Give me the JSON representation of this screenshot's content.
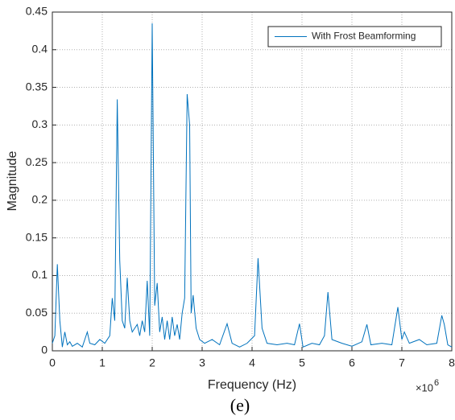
{
  "chart_data": {
    "type": "line",
    "xlabel": "Frequency (Hz)",
    "ylabel": "Magnitude",
    "caption": "(e)",
    "x_multiplier": {
      "base": "×10",
      "exponent": "6"
    },
    "xlim": [
      0,
      8
    ],
    "xticks": [
      0,
      1,
      2,
      3,
      4,
      5,
      6,
      7,
      8
    ],
    "ylim": [
      0,
      0.45
    ],
    "yticks": [
      0,
      0.05,
      0.1,
      0.15,
      0.2,
      0.25,
      0.3,
      0.35,
      0.4,
      0.45
    ],
    "grid": true,
    "legend": "upper right",
    "series": [
      {
        "name": "With Frost Beamforming",
        "color": "#0072bd",
        "x": [
          0,
          0.05,
          0.1,
          0.15,
          0.2,
          0.25,
          0.3,
          0.35,
          0.4,
          0.5,
          0.6,
          0.7,
          0.75,
          0.85,
          0.95,
          1.05,
          1.15,
          1.2,
          1.25,
          1.3,
          1.35,
          1.4,
          1.45,
          1.5,
          1.55,
          1.6,
          1.7,
          1.75,
          1.8,
          1.85,
          1.9,
          1.95,
          2.0,
          2.05,
          2.1,
          2.15,
          2.2,
          2.25,
          2.3,
          2.35,
          2.4,
          2.45,
          2.5,
          2.55,
          2.6,
          2.65,
          2.7,
          2.75,
          2.78,
          2.82,
          2.88,
          2.95,
          3.05,
          3.2,
          3.35,
          3.5,
          3.6,
          3.75,
          3.9,
          4.05,
          4.12,
          4.2,
          4.3,
          4.5,
          4.7,
          4.85,
          4.95,
          5.02,
          5.2,
          5.35,
          5.45,
          5.52,
          5.6,
          5.8,
          6.0,
          6.2,
          6.3,
          6.38,
          6.6,
          6.8,
          6.92,
          7.0,
          7.05,
          7.15,
          7.35,
          7.5,
          7.7,
          7.8,
          7.85,
          7.92,
          8.0
        ],
        "values": [
          0.01,
          0.02,
          0.115,
          0.04,
          0.005,
          0.025,
          0.008,
          0.012,
          0.006,
          0.01,
          0.005,
          0.025,
          0.01,
          0.008,
          0.015,
          0.01,
          0.02,
          0.07,
          0.04,
          0.334,
          0.12,
          0.04,
          0.03,
          0.097,
          0.04,
          0.025,
          0.035,
          0.02,
          0.04,
          0.025,
          0.093,
          0.02,
          0.435,
          0.06,
          0.09,
          0.025,
          0.045,
          0.015,
          0.04,
          0.015,
          0.045,
          0.02,
          0.035,
          0.015,
          0.05,
          0.07,
          0.341,
          0.3,
          0.05,
          0.074,
          0.03,
          0.015,
          0.01,
          0.015,
          0.008,
          0.036,
          0.01,
          0.005,
          0.01,
          0.02,
          0.123,
          0.03,
          0.01,
          0.008,
          0.01,
          0.008,
          0.036,
          0.005,
          0.01,
          0.008,
          0.02,
          0.078,
          0.015,
          0.01,
          0.006,
          0.012,
          0.035,
          0.008,
          0.01,
          0.008,
          0.058,
          0.015,
          0.025,
          0.01,
          0.015,
          0.008,
          0.01,
          0.047,
          0.035,
          0.008,
          0.005
        ]
      }
    ]
  }
}
